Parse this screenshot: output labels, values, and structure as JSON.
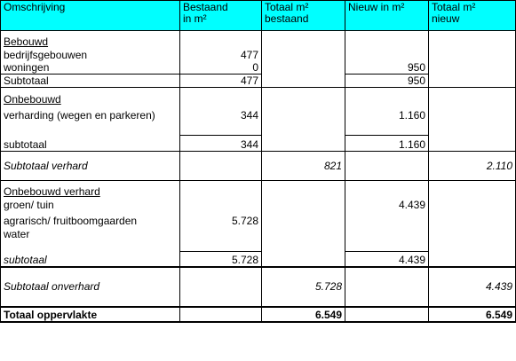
{
  "headers": {
    "col1": "Omschrijving",
    "col2_line1": "Bestaand",
    "col2_line2": "in m²",
    "col3_line1": "Totaal m²",
    "col3_line2": "bestaand",
    "col4": "Nieuw in m²",
    "col5_line1": "Totaal m²",
    "col5_line2": "nieuw"
  },
  "bebouwd": {
    "heading": "Bebouwd",
    "rows": [
      {
        "label": "bedrijfsgebouwen",
        "bestaand": "477",
        "nieuw": ""
      },
      {
        "label": "woningen",
        "bestaand": "0",
        "nieuw": "950"
      }
    ],
    "subtotal": {
      "label": "Subtotaal",
      "bestaand": "477",
      "nieuw": "950"
    }
  },
  "onbebouwd": {
    "heading": "Onbebouwd",
    "row": {
      "label": "verharding (wegen en parkeren)",
      "bestaand": "344",
      "nieuw": "1.160"
    },
    "subtotal": {
      "label": "subtotaal",
      "bestaand": "344",
      "nieuw": "1.160"
    }
  },
  "subtotaal_verhard": {
    "label": "Subtotaal verhard",
    "totaal_bestaand": "821",
    "totaal_nieuw": "2.110"
  },
  "onbebouwd_verhard": {
    "heading": "Onbebouwd verhard",
    "rows": [
      {
        "label": "groen/ tuin",
        "bestaand": "",
        "nieuw": "4.439"
      },
      {
        "label": "agrarisch/ fruitboomgaarden",
        "bestaand": "5.728",
        "nieuw": ""
      },
      {
        "label": "water",
        "bestaand": "",
        "nieuw": ""
      }
    ],
    "subtotal": {
      "label": "subtotaal",
      "bestaand": "5.728",
      "nieuw": "4.439"
    }
  },
  "subtotaal_onverhard": {
    "label": "Subtotaal onverhard",
    "totaal_bestaand": "5.728",
    "totaal_nieuw": "4.439"
  },
  "totaal": {
    "label": "Totaal oppervlakte",
    "totaal_bestaand": "6.549",
    "totaal_nieuw": "6.549"
  },
  "colors": {
    "header_bg": "#00ffff",
    "border": "#000000"
  }
}
